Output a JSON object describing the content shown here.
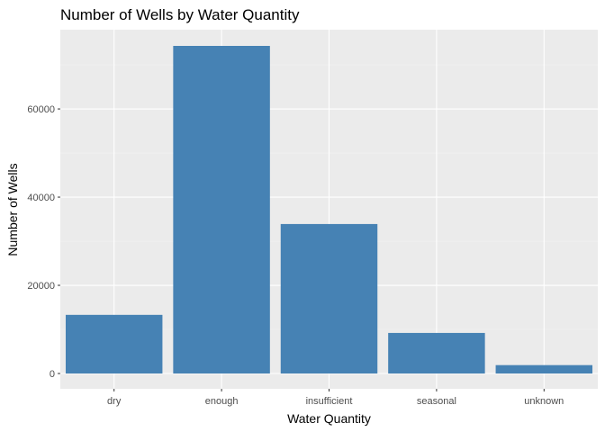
{
  "chart_data": {
    "type": "bar",
    "title": "Number of Wells by Water Quantity",
    "xlabel": "Water Quantity",
    "ylabel": "Number of Wells",
    "categories": [
      "dry",
      "enough",
      "insufficient",
      "seasonal",
      "unknown"
    ],
    "values": [
      13300,
      74300,
      33900,
      9200,
      1900
    ],
    "ylim": [
      0,
      77000
    ],
    "yticks": [
      0,
      20000,
      40000,
      60000
    ],
    "ytick_labels": [
      "0",
      "20000",
      "40000",
      "60000"
    ],
    "grid": true,
    "legend": "none",
    "colors": {
      "bar": "#4682b4",
      "panel": "#ebebeb",
      "grid_major": "#ffffff",
      "grid_minor": "#f4f4f4",
      "tick_label": "#4d4d4d"
    }
  }
}
